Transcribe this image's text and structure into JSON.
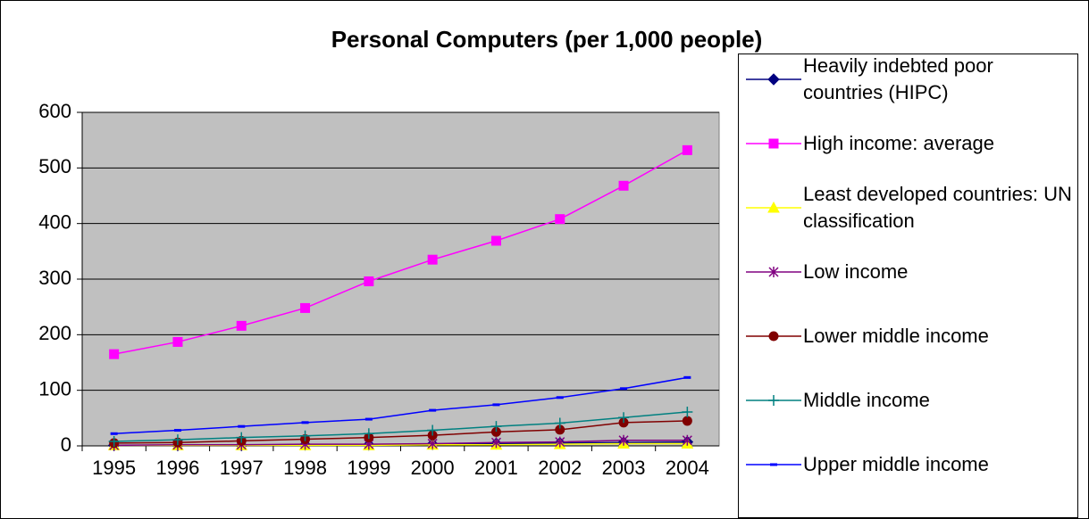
{
  "chart_data": {
    "type": "line",
    "title": "Personal Computers (per 1,000 people)",
    "categories": [
      "1995",
      "1996",
      "1997",
      "1998",
      "1999",
      "2000",
      "2001",
      "2002",
      "2003",
      "2004"
    ],
    "ylim": [
      0,
      600
    ],
    "yticks": [
      0,
      100,
      200,
      300,
      400,
      500,
      600
    ],
    "grid": true,
    "series": [
      {
        "name": "Heavily indebted poor countries (HIPC)",
        "color": "#000080",
        "marker": "diamond",
        "values": [
          1,
          1,
          1,
          2,
          2,
          3,
          4,
          5,
          6,
          7
        ]
      },
      {
        "name": "High income: average",
        "color": "#FF00FF",
        "marker": "square",
        "values": [
          165,
          187,
          216,
          248,
          296,
          335,
          369,
          408,
          468,
          532
        ]
      },
      {
        "name": "Least developed countries: UN classification",
        "color": "#FFFF00",
        "marker": "triangle",
        "values": [
          1,
          1,
          1,
          1,
          1,
          2,
          2,
          3,
          4,
          4
        ]
      },
      {
        "name": "Low income",
        "color": "#800080",
        "marker": "asterisk",
        "values": [
          1,
          2,
          2,
          3,
          3,
          4,
          6,
          7,
          10,
          10
        ]
      },
      {
        "name": "Lower middle income",
        "color": "#800000",
        "marker": "circle",
        "values": [
          5,
          6,
          9,
          12,
          15,
          19,
          25,
          29,
          42,
          45
        ]
      },
      {
        "name": "Middle income",
        "color": "#008080",
        "marker": "plus",
        "values": [
          8,
          11,
          15,
          18,
          22,
          28,
          35,
          41,
          51,
          61
        ]
      },
      {
        "name": "Upper middle income",
        "color": "#0000FF",
        "marker": "dash",
        "values": [
          22,
          28,
          35,
          42,
          48,
          64,
          74,
          87,
          103,
          123
        ]
      }
    ]
  }
}
